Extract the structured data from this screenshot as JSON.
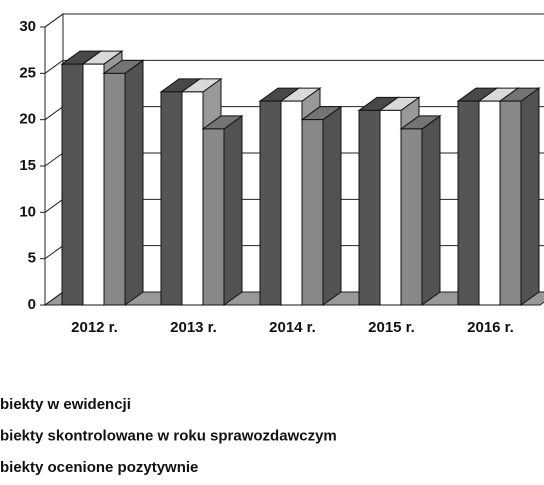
{
  "chart_data": {
    "type": "bar3d",
    "categories": [
      "2012 r.",
      "2013 r.",
      "2014 r.",
      "2015 r.",
      "2016 r."
    ],
    "series": [
      {
        "name": "biekty w ewidencji",
        "color": "#555555",
        "values": [
          26,
          23,
          22,
          21,
          22
        ]
      },
      {
        "name": "biekty skontrolowane w roku sprawozdawczym",
        "color": "#ffffff",
        "values": [
          26,
          23,
          22,
          21,
          22
        ]
      },
      {
        "name": "biekty ocenione pozytywnie",
        "color": "#888888",
        "values": [
          25,
          19,
          20,
          19,
          22
        ]
      }
    ],
    "ylim": [
      0,
      30
    ],
    "yticks": [
      0,
      5,
      10,
      15,
      20,
      25,
      30
    ],
    "grid": true
  }
}
